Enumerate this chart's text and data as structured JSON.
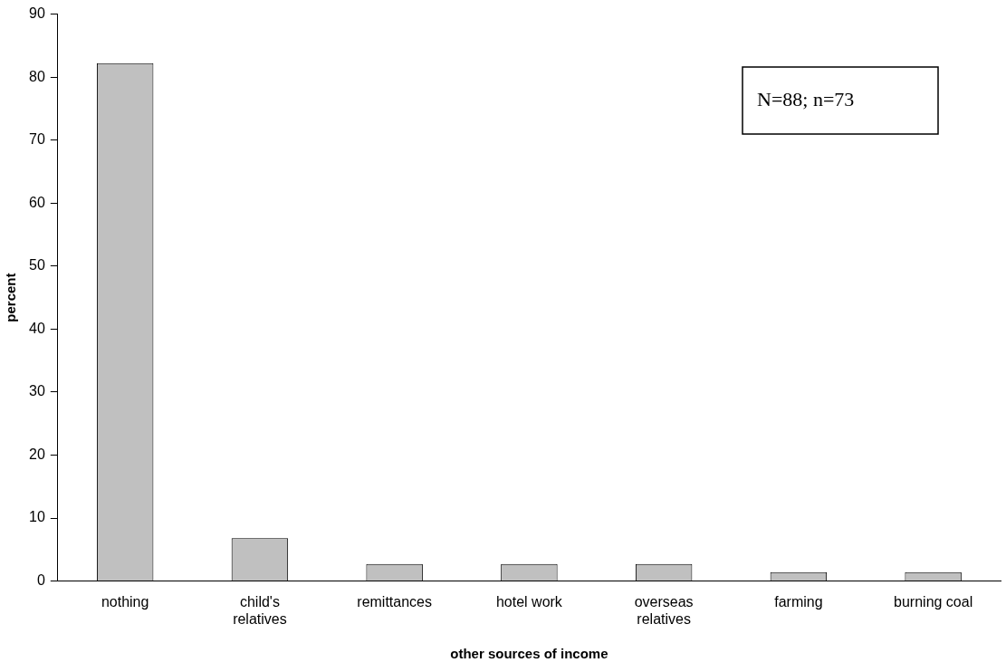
{
  "chart_data": {
    "type": "bar",
    "xlabel": "other sources of income",
    "ylabel": "percent",
    "categories": [
      "nothing",
      "child's relatives",
      "remittances",
      "hotel work",
      "overseas relatives",
      "farming",
      "burning coal"
    ],
    "values": [
      82.2,
      6.8,
      2.7,
      2.7,
      2.7,
      1.4,
      1.4
    ],
    "color": "#c0c0c0",
    "ylim": [
      0,
      90
    ],
    "yticks": [
      0,
      10,
      20,
      30,
      40,
      50,
      60,
      70,
      80,
      90
    ],
    "grid": false,
    "legend": false,
    "annotations": [
      "N=88; n=73"
    ]
  }
}
